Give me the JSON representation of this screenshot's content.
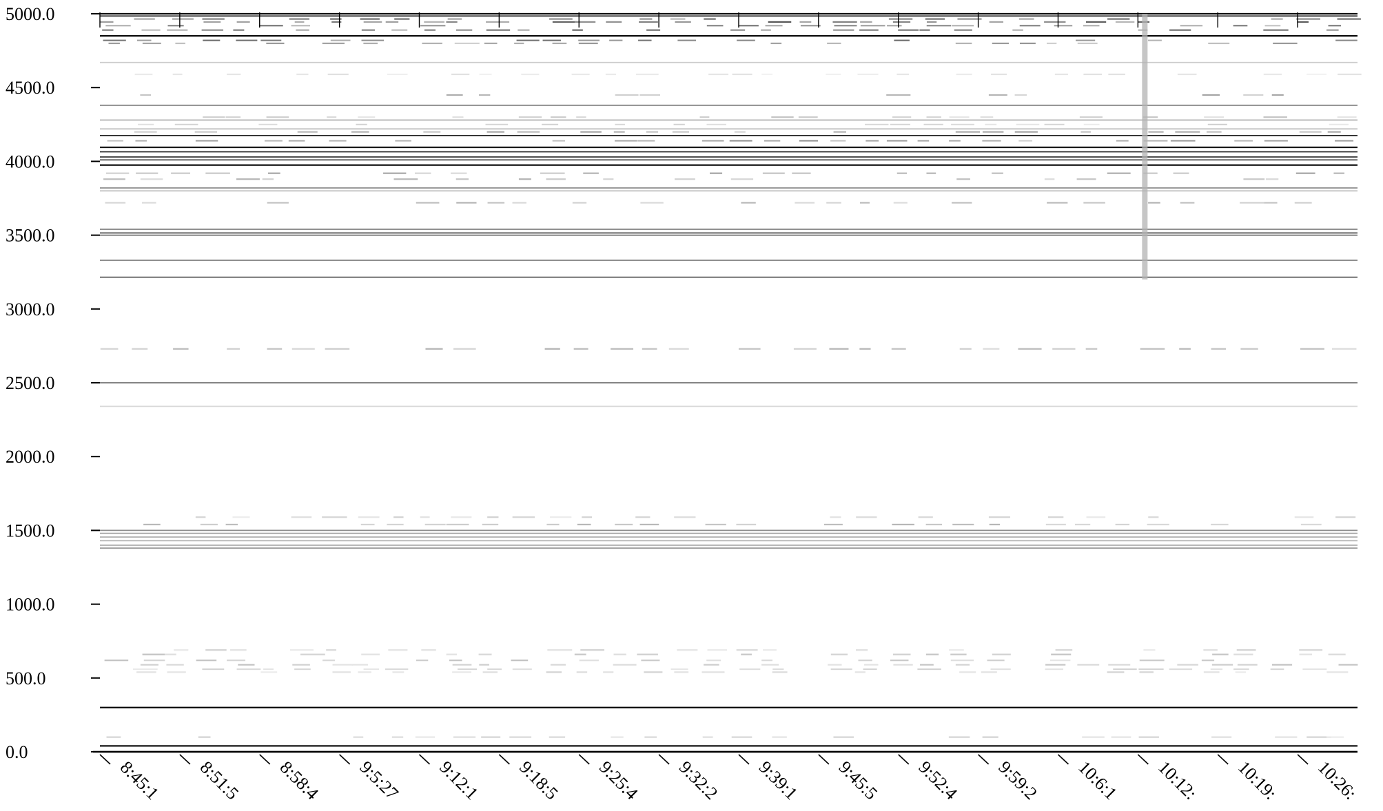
{
  "chart_data": {
    "type": "heatmap",
    "title": "",
    "xlabel": "",
    "ylabel": "",
    "colormap": "grayscale (white = 0, black = max)",
    "ylim": [
      0,
      5000
    ],
    "y_ticks": [
      0,
      500,
      1000,
      1500,
      2000,
      2500,
      3000,
      3500,
      4000,
      4500,
      5000
    ],
    "y_tick_labels": [
      "0.0",
      "500.0",
      "1000.0",
      "1500.0",
      "2000.0",
      "2500.0",
      "3000.0",
      "3500.0",
      "4000.0",
      "4500.0",
      "5000.0"
    ],
    "x_tick_labels": [
      "8:45:1",
      "8:51:5",
      "8:58:4",
      "9:5:27",
      "9:12:1",
      "9:18:5",
      "9:25:4",
      "9:32:2",
      "9:39:1",
      "9:45:5",
      "9:52:4",
      "9:59:2",
      "10:6:1",
      "10:12:",
      "10:19:",
      "10:26:"
    ],
    "grid": false,
    "legend": "none",
    "bands": [
      {
        "y": 5000,
        "intensity": 0.95,
        "continuous": true
      },
      {
        "y": 4985,
        "intensity": 0.8,
        "continuous": true
      },
      {
        "y": 4965,
        "intensity": 0.5,
        "continuous": false
      },
      {
        "y": 4945,
        "intensity": 0.55,
        "continuous": false
      },
      {
        "y": 4920,
        "intensity": 0.45,
        "continuous": false
      },
      {
        "y": 4890,
        "intensity": 0.5,
        "continuous": false
      },
      {
        "y": 4850,
        "intensity": 0.95,
        "continuous": true
      },
      {
        "y": 4820,
        "intensity": 0.5,
        "continuous": false
      },
      {
        "y": 4800,
        "intensity": 0.35,
        "continuous": false
      },
      {
        "y": 4670,
        "intensity": 0.2,
        "continuous": true
      },
      {
        "y": 4590,
        "intensity": 0.1,
        "continuous": false
      },
      {
        "y": 4450,
        "intensity": 0.3,
        "continuous": false
      },
      {
        "y": 4380,
        "intensity": 0.45,
        "continuous": true
      },
      {
        "y": 4300,
        "intensity": 0.2,
        "continuous": false
      },
      {
        "y": 4280,
        "intensity": 0.3,
        "continuous": true
      },
      {
        "y": 4250,
        "intensity": 0.15,
        "continuous": false
      },
      {
        "y": 4220,
        "intensity": 0.25,
        "continuous": true
      },
      {
        "y": 4200,
        "intensity": 0.3,
        "continuous": false
      },
      {
        "y": 4175,
        "intensity": 0.85,
        "continuous": true
      },
      {
        "y": 4140,
        "intensity": 0.35,
        "continuous": false
      },
      {
        "y": 4095,
        "intensity": 0.9,
        "continuous": true
      },
      {
        "y": 4065,
        "intensity": 0.85,
        "continuous": true
      },
      {
        "y": 4030,
        "intensity": 0.8,
        "continuous": true
      },
      {
        "y": 4010,
        "intensity": 0.7,
        "continuous": true
      },
      {
        "y": 3975,
        "intensity": 0.9,
        "continuous": true
      },
      {
        "y": 3920,
        "intensity": 0.3,
        "continuous": false
      },
      {
        "y": 3880,
        "intensity": 0.25,
        "continuous": false
      },
      {
        "y": 3820,
        "intensity": 0.45,
        "continuous": true
      },
      {
        "y": 3800,
        "intensity": 0.25,
        "continuous": true
      },
      {
        "y": 3720,
        "intensity": 0.25,
        "continuous": false
      },
      {
        "y": 3540,
        "intensity": 0.5,
        "continuous": true
      },
      {
        "y": 3515,
        "intensity": 0.7,
        "continuous": true
      },
      {
        "y": 3500,
        "intensity": 0.55,
        "continuous": true
      },
      {
        "y": 3330,
        "intensity": 0.45,
        "continuous": true
      },
      {
        "y": 3215,
        "intensity": 0.6,
        "continuous": true
      },
      {
        "y": 2730,
        "intensity": 0.25,
        "continuous": false
      },
      {
        "y": 2500,
        "intensity": 0.55,
        "continuous": true
      },
      {
        "y": 2340,
        "intensity": 0.15,
        "continuous": true
      },
      {
        "y": 1590,
        "intensity": 0.15,
        "continuous": false
      },
      {
        "y": 1540,
        "intensity": 0.25,
        "continuous": false
      },
      {
        "y": 1500,
        "intensity": 0.45,
        "continuous": true
      },
      {
        "y": 1480,
        "intensity": 0.35,
        "continuous": true
      },
      {
        "y": 1455,
        "intensity": 0.3,
        "continuous": true
      },
      {
        "y": 1430,
        "intensity": 0.3,
        "continuous": true
      },
      {
        "y": 1400,
        "intensity": 0.35,
        "continuous": true
      },
      {
        "y": 1380,
        "intensity": 0.4,
        "continuous": true
      },
      {
        "y": 690,
        "intensity": 0.15,
        "continuous": false
      },
      {
        "y": 660,
        "intensity": 0.2,
        "continuous": false
      },
      {
        "y": 620,
        "intensity": 0.2,
        "continuous": false
      },
      {
        "y": 590,
        "intensity": 0.2,
        "continuous": false
      },
      {
        "y": 560,
        "intensity": 0.15,
        "continuous": false
      },
      {
        "y": 540,
        "intensity": 0.15,
        "continuous": false
      },
      {
        "y": 300,
        "intensity": 1.0,
        "continuous": true
      },
      {
        "y": 100,
        "intensity": 0.15,
        "continuous": false
      },
      {
        "y": 40,
        "intensity": 1.0,
        "continuous": true
      },
      {
        "y": 0,
        "intensity": 1.0,
        "continuous": true
      }
    ],
    "vertical_feature": {
      "x_label": "10:12:",
      "y_from": 3200,
      "y_to": 5000,
      "intensity": 0.3
    }
  }
}
